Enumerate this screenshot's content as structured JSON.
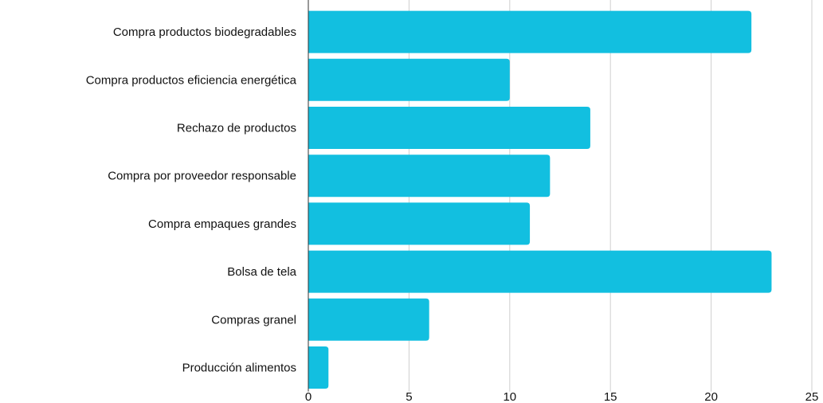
{
  "chart_data": {
    "type": "bar",
    "orientation": "horizontal",
    "categories": [
      "Compra productos biodegradables",
      "Compra productos eficiencia energética",
      "Rechazo de productos",
      "Compra por proveedor responsable",
      "Compra empaques grandes",
      "Bolsa de tela",
      "Compras granel",
      "Producción alimentos"
    ],
    "values": [
      22,
      10,
      14,
      12,
      11,
      23,
      6,
      1
    ],
    "xlim": [
      0,
      25
    ],
    "x_ticks": [
      "0",
      "5",
      "10",
      "15",
      "20",
      "25"
    ],
    "title": "",
    "xlabel": "",
    "ylabel": "",
    "grid": "vertical",
    "legend": "none",
    "bar_color": "#12bfe0"
  }
}
